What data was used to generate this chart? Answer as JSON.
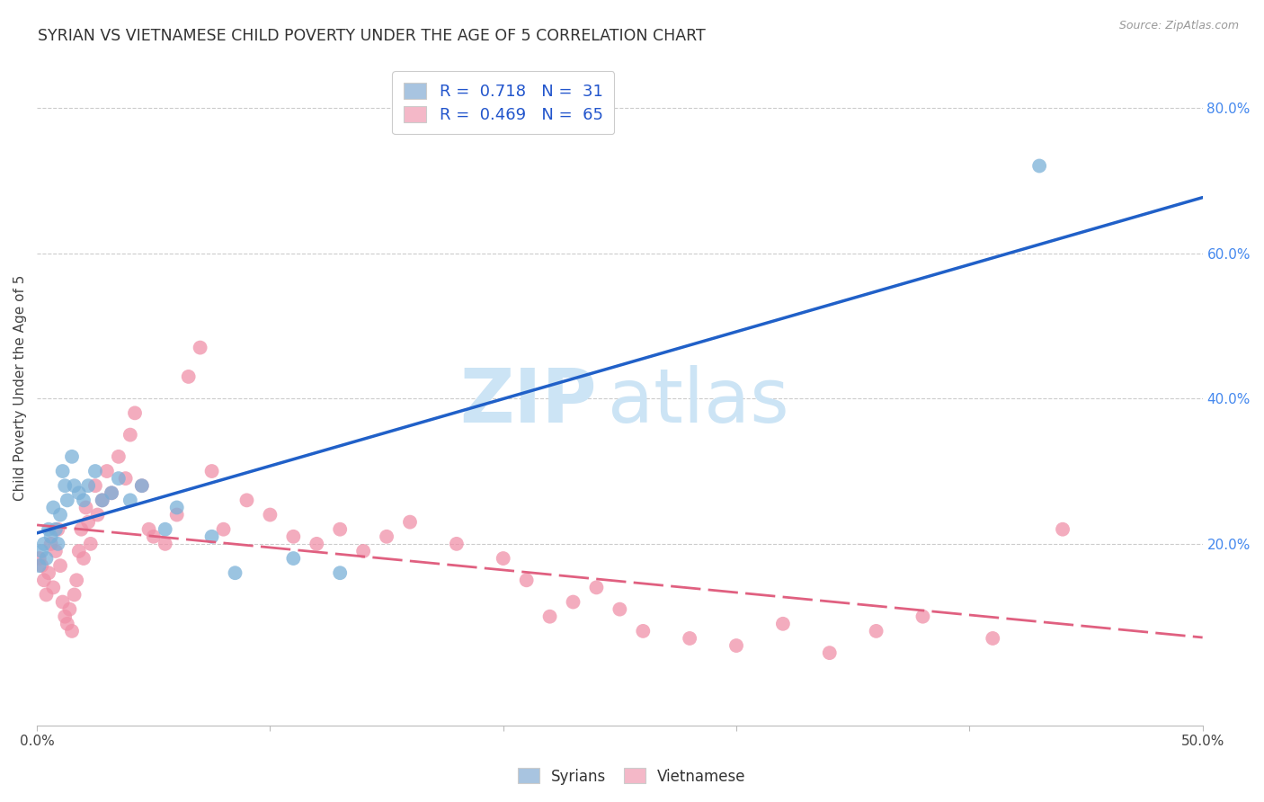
{
  "title": "SYRIAN VS VIETNAMESE CHILD POVERTY UNDER THE AGE OF 5 CORRELATION CHART",
  "source": "Source: ZipAtlas.com",
  "ylabel": "Child Poverty Under the Age of 5",
  "xlim": [
    0.0,
    0.5
  ],
  "ylim": [
    -0.05,
    0.88
  ],
  "xticks": [
    0.0,
    0.1,
    0.2,
    0.3,
    0.4,
    0.5
  ],
  "xticklabels": [
    "0.0%",
    "",
    "",
    "",
    "",
    "50.0%"
  ],
  "yticks_right": [
    0.2,
    0.4,
    0.6,
    0.8
  ],
  "ytick_labels_right": [
    "20.0%",
    "40.0%",
    "60.0%",
    "80.0%"
  ],
  "legend_color1": "#a8c4e0",
  "legend_color2": "#f4b8c8",
  "syrians_color": "#7ab0d8",
  "vietnamese_color": "#f090a8",
  "line_blue": "#2060c8",
  "line_pink": "#e06080",
  "watermark_zip": "ZIP",
  "watermark_atlas": "atlas",
  "watermark_color": "#cce4f5",
  "background_color": "#ffffff",
  "grid_color": "#cccccc",
  "syrians_x": [
    0.001,
    0.002,
    0.003,
    0.004,
    0.005,
    0.006,
    0.007,
    0.008,
    0.009,
    0.01,
    0.011,
    0.012,
    0.013,
    0.015,
    0.016,
    0.018,
    0.02,
    0.022,
    0.025,
    0.028,
    0.032,
    0.035,
    0.04,
    0.045,
    0.055,
    0.06,
    0.075,
    0.085,
    0.11,
    0.13,
    0.43
  ],
  "syrians_y": [
    0.17,
    0.19,
    0.2,
    0.18,
    0.22,
    0.21,
    0.25,
    0.22,
    0.2,
    0.24,
    0.3,
    0.28,
    0.26,
    0.32,
    0.28,
    0.27,
    0.26,
    0.28,
    0.3,
    0.26,
    0.27,
    0.29,
    0.26,
    0.28,
    0.22,
    0.25,
    0.21,
    0.16,
    0.18,
    0.16,
    0.72
  ],
  "vietnamese_x": [
    0.001,
    0.002,
    0.003,
    0.004,
    0.005,
    0.006,
    0.007,
    0.008,
    0.009,
    0.01,
    0.011,
    0.012,
    0.013,
    0.014,
    0.015,
    0.016,
    0.017,
    0.018,
    0.019,
    0.02,
    0.021,
    0.022,
    0.023,
    0.025,
    0.026,
    0.028,
    0.03,
    0.032,
    0.035,
    0.038,
    0.04,
    0.042,
    0.045,
    0.048,
    0.05,
    0.055,
    0.06,
    0.065,
    0.07,
    0.075,
    0.08,
    0.09,
    0.1,
    0.11,
    0.12,
    0.13,
    0.14,
    0.15,
    0.16,
    0.18,
    0.2,
    0.21,
    0.22,
    0.23,
    0.24,
    0.25,
    0.26,
    0.28,
    0.3,
    0.32,
    0.34,
    0.36,
    0.38,
    0.41,
    0.44
  ],
  "vietnamese_y": [
    0.18,
    0.17,
    0.15,
    0.13,
    0.16,
    0.2,
    0.14,
    0.19,
    0.22,
    0.17,
    0.12,
    0.1,
    0.09,
    0.11,
    0.08,
    0.13,
    0.15,
    0.19,
    0.22,
    0.18,
    0.25,
    0.23,
    0.2,
    0.28,
    0.24,
    0.26,
    0.3,
    0.27,
    0.32,
    0.29,
    0.35,
    0.38,
    0.28,
    0.22,
    0.21,
    0.2,
    0.24,
    0.43,
    0.47,
    0.3,
    0.22,
    0.26,
    0.24,
    0.21,
    0.2,
    0.22,
    0.19,
    0.21,
    0.23,
    0.2,
    0.18,
    0.15,
    0.1,
    0.12,
    0.14,
    0.11,
    0.08,
    0.07,
    0.06,
    0.09,
    0.05,
    0.08,
    0.1,
    0.07,
    0.22
  ]
}
